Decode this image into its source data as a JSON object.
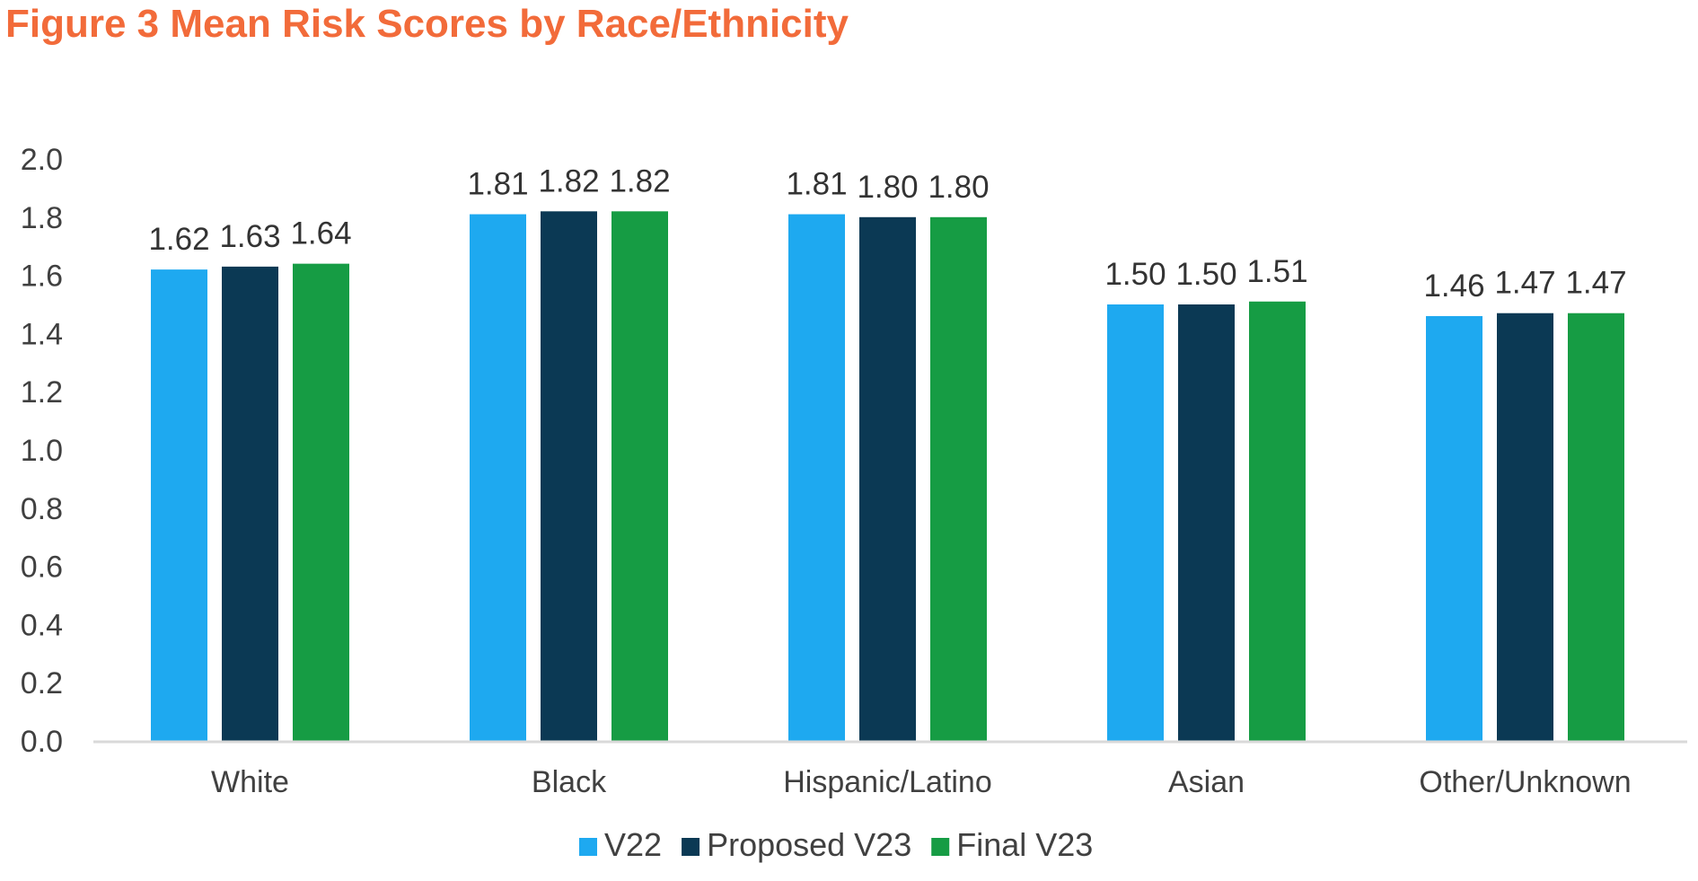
{
  "chart_data": {
    "type": "bar",
    "title": "Figure 3 Mean Risk Scores by Race/Ethnicity",
    "xlabel": "",
    "ylabel": "",
    "ylim": [
      0,
      2.0
    ],
    "yticks": [
      "0.0",
      "0.2",
      "0.4",
      "0.6",
      "0.8",
      "1.0",
      "1.2",
      "1.4",
      "1.6",
      "1.8",
      "2.0"
    ],
    "grid": false,
    "legend_position": "bottom",
    "categories": [
      "White",
      "Black",
      "Hispanic/Latino",
      "Asian",
      "Other/Unknown"
    ],
    "series": [
      {
        "name": "V22",
        "color": "#1EA9F0",
        "values": [
          1.62,
          1.81,
          1.81,
          1.5,
          1.46
        ],
        "labels": [
          "1.62",
          "1.81",
          "1.81",
          "1.50",
          "1.46"
        ]
      },
      {
        "name": "Proposed V23",
        "color": "#0B3954",
        "values": [
          1.63,
          1.82,
          1.8,
          1.5,
          1.47
        ],
        "labels": [
          "1.63",
          "1.82",
          "1.80",
          "1.50",
          "1.47"
        ]
      },
      {
        "name": "Final V23",
        "color": "#169C44",
        "values": [
          1.64,
          1.82,
          1.8,
          1.51,
          1.47
        ],
        "labels": [
          "1.64",
          "1.82",
          "1.80",
          "1.51",
          "1.47"
        ]
      }
    ]
  }
}
